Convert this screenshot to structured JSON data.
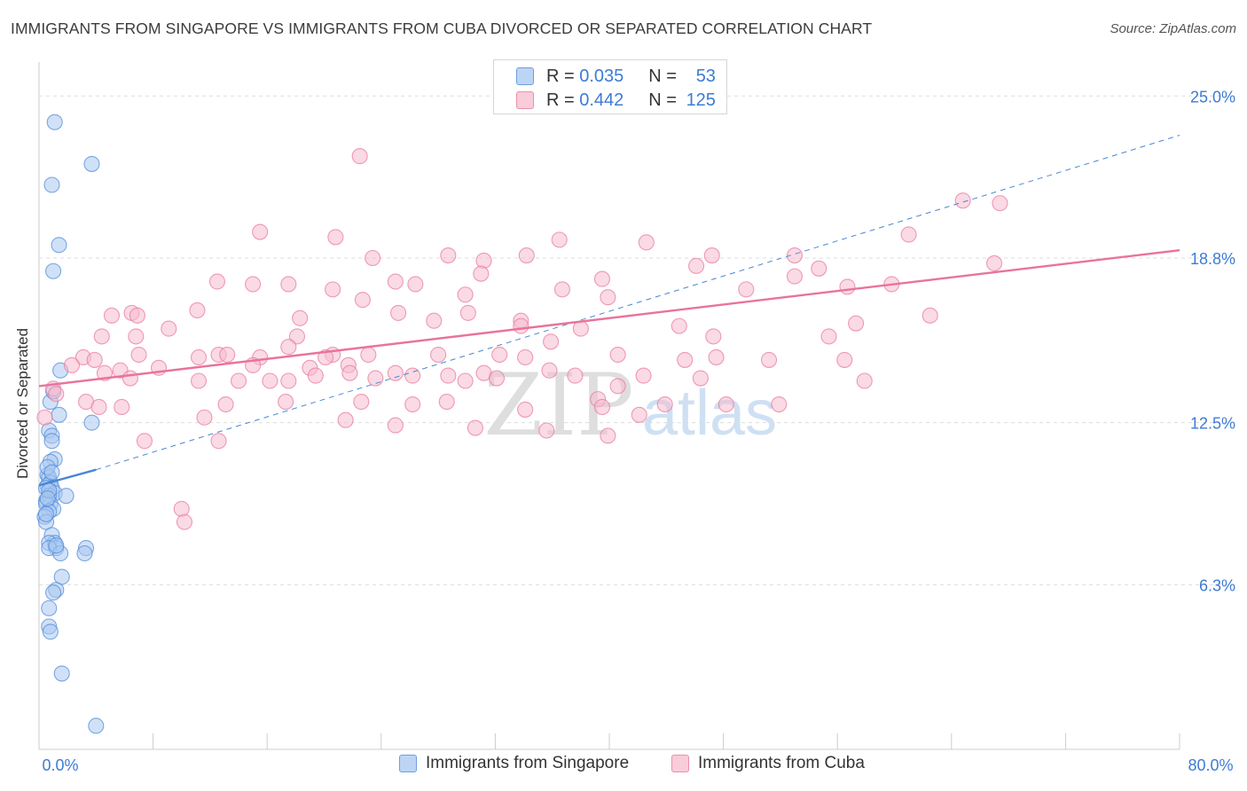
{
  "title": "IMMIGRANTS FROM SINGAPORE VS IMMIGRANTS FROM CUBA DIVORCED OR SEPARATED CORRELATION CHART",
  "source": "Source: ZipAtlas.com",
  "watermark": {
    "zip": "ZIP",
    "atlas": "atlas"
  },
  "legend_top": {
    "rows": [
      {
        "r_label": "R =",
        "r_value": "0.035",
        "n_label": "N =",
        "n_value": "53",
        "color": "#a9c8f0"
      },
      {
        "r_label": "R =",
        "r_value": "0.442",
        "n_label": "N =",
        "n_value": "125",
        "color": "#f6bccd"
      }
    ]
  },
  "legend_bottom": {
    "items": [
      {
        "label": "Immigrants from Singapore",
        "color": "#a9c8f0"
      },
      {
        "label": "Immigrants from Cuba",
        "color": "#f6bccd"
      }
    ]
  },
  "chart_data": {
    "type": "scatter",
    "title": "IMMIGRANTS FROM SINGAPORE VS IMMIGRANTS FROM CUBA DIVORCED OR SEPARATED CORRELATION CHART",
    "xlabel": "",
    "ylabel": "Divorced or Separated",
    "xlim": [
      0,
      80
    ],
    "ylim": [
      0,
      26.3
    ],
    "x_tick_labels": [
      "0.0%",
      "80.0%"
    ],
    "y_ticks": [
      6.3,
      12.5,
      18.8,
      25.0
    ],
    "y_tick_labels": [
      "6.3%",
      "12.5%",
      "18.8%",
      "25.0%"
    ],
    "grid": true,
    "series": [
      {
        "name": "Immigrants from Singapore",
        "color": "#4a86d8",
        "fill": "#a9c8f0",
        "points": [
          [
            1.1,
            24.0
          ],
          [
            3.7,
            22.4
          ],
          [
            0.9,
            21.6
          ],
          [
            1.4,
            19.3
          ],
          [
            1.0,
            18.3
          ],
          [
            1.5,
            14.5
          ],
          [
            0.8,
            13.3
          ],
          [
            1.0,
            13.7
          ],
          [
            1.4,
            12.8
          ],
          [
            3.7,
            12.5
          ],
          [
            0.7,
            12.2
          ],
          [
            0.9,
            12.0
          ],
          [
            0.9,
            11.8
          ],
          [
            1.1,
            11.1
          ],
          [
            0.8,
            11.0
          ],
          [
            0.6,
            10.5
          ],
          [
            0.7,
            10.4
          ],
          [
            0.8,
            10.2
          ],
          [
            0.6,
            10.1
          ],
          [
            0.9,
            10.0
          ],
          [
            0.5,
            10.0
          ],
          [
            1.1,
            9.8
          ],
          [
            0.7,
            9.7
          ],
          [
            0.5,
            9.5
          ],
          [
            1.9,
            9.7
          ],
          [
            0.8,
            9.4
          ],
          [
            0.5,
            9.4
          ],
          [
            1.0,
            9.2
          ],
          [
            0.7,
            9.1
          ],
          [
            0.4,
            8.9
          ],
          [
            0.5,
            8.7
          ],
          [
            0.9,
            8.2
          ],
          [
            1.1,
            7.9
          ],
          [
            0.7,
            7.9
          ],
          [
            1.2,
            7.7
          ],
          [
            0.7,
            7.7
          ],
          [
            3.3,
            7.7
          ],
          [
            3.2,
            7.5
          ],
          [
            1.5,
            7.5
          ],
          [
            1.6,
            6.6
          ],
          [
            1.2,
            6.1
          ],
          [
            1.0,
            6.0
          ],
          [
            0.7,
            5.4
          ],
          [
            0.7,
            4.7
          ],
          [
            0.8,
            4.5
          ],
          [
            1.6,
            2.9
          ],
          [
            4.0,
            0.9
          ],
          [
            0.6,
            10.8
          ],
          [
            0.7,
            9.9
          ],
          [
            0.5,
            9.0
          ],
          [
            1.2,
            7.8
          ],
          [
            0.9,
            10.6
          ],
          [
            0.6,
            9.6
          ]
        ]
      },
      {
        "name": "Immigrants from Cuba",
        "color": "#e9739a",
        "fill": "#f6bccd",
        "points": [
          [
            22.5,
            22.7
          ],
          [
            64.8,
            21.0
          ],
          [
            67.4,
            20.9
          ],
          [
            15.5,
            19.8
          ],
          [
            20.8,
            19.6
          ],
          [
            36.5,
            19.5
          ],
          [
            42.6,
            19.4
          ],
          [
            61.0,
            19.7
          ],
          [
            23.4,
            18.8
          ],
          [
            28.7,
            18.9
          ],
          [
            34.2,
            18.9
          ],
          [
            47.2,
            18.9
          ],
          [
            53.0,
            18.9
          ],
          [
            31.2,
            18.7
          ],
          [
            67.0,
            18.6
          ],
          [
            46.1,
            18.5
          ],
          [
            54.7,
            18.4
          ],
          [
            31.0,
            18.2
          ],
          [
            53.0,
            18.1
          ],
          [
            39.5,
            18.0
          ],
          [
            25.0,
            17.9
          ],
          [
            12.5,
            17.9
          ],
          [
            15.0,
            17.8
          ],
          [
            17.5,
            17.8
          ],
          [
            20.6,
            17.6
          ],
          [
            26.4,
            17.8
          ],
          [
            36.7,
            17.6
          ],
          [
            29.9,
            17.4
          ],
          [
            59.8,
            17.8
          ],
          [
            56.7,
            17.7
          ],
          [
            49.6,
            17.6
          ],
          [
            39.9,
            17.3
          ],
          [
            22.7,
            17.2
          ],
          [
            11.1,
            16.8
          ],
          [
            6.5,
            16.7
          ],
          [
            25.2,
            16.7
          ],
          [
            6.9,
            16.6
          ],
          [
            5.1,
            16.6
          ],
          [
            30.1,
            16.7
          ],
          [
            18.3,
            16.5
          ],
          [
            27.7,
            16.4
          ],
          [
            33.8,
            16.4
          ],
          [
            62.5,
            16.6
          ],
          [
            9.1,
            16.1
          ],
          [
            33.8,
            16.2
          ],
          [
            38.0,
            16.1
          ],
          [
            44.9,
            16.2
          ],
          [
            57.3,
            16.3
          ],
          [
            55.4,
            15.8
          ],
          [
            4.4,
            15.8
          ],
          [
            6.8,
            15.8
          ],
          [
            18.1,
            15.8
          ],
          [
            47.3,
            15.8
          ],
          [
            35.9,
            15.6
          ],
          [
            17.5,
            15.4
          ],
          [
            7.0,
            15.1
          ],
          [
            12.6,
            15.1
          ],
          [
            13.2,
            15.1
          ],
          [
            20.6,
            15.1
          ],
          [
            28.0,
            15.1
          ],
          [
            11.2,
            15.0
          ],
          [
            15.5,
            15.0
          ],
          [
            20.1,
            15.0
          ],
          [
            23.1,
            15.1
          ],
          [
            32.3,
            15.1
          ],
          [
            34.1,
            15.0
          ],
          [
            45.3,
            14.9
          ],
          [
            47.5,
            15.0
          ],
          [
            40.6,
            15.1
          ],
          [
            51.2,
            14.9
          ],
          [
            56.5,
            14.9
          ],
          [
            3.1,
            15.0
          ],
          [
            3.9,
            14.9
          ],
          [
            2.3,
            14.7
          ],
          [
            4.6,
            14.4
          ],
          [
            5.7,
            14.5
          ],
          [
            8.4,
            14.6
          ],
          [
            15.0,
            14.7
          ],
          [
            19.0,
            14.6
          ],
          [
            21.7,
            14.7
          ],
          [
            21.8,
            14.4
          ],
          [
            25.0,
            14.4
          ],
          [
            26.2,
            14.3
          ],
          [
            31.2,
            14.4
          ],
          [
            37.6,
            14.3
          ],
          [
            29.9,
            14.1
          ],
          [
            35.8,
            14.5
          ],
          [
            42.4,
            14.3
          ],
          [
            46.4,
            14.2
          ],
          [
            57.9,
            14.1
          ],
          [
            6.4,
            14.2
          ],
          [
            11.2,
            14.1
          ],
          [
            14.0,
            14.1
          ],
          [
            16.2,
            14.1
          ],
          [
            17.5,
            14.1
          ],
          [
            19.4,
            14.3
          ],
          [
            23.6,
            14.2
          ],
          [
            28.7,
            14.3
          ],
          [
            32.1,
            14.2
          ],
          [
            40.6,
            13.9
          ],
          [
            1.0,
            13.8
          ],
          [
            1.2,
            13.6
          ],
          [
            3.3,
            13.3
          ],
          [
            4.2,
            13.1
          ],
          [
            5.8,
            13.1
          ],
          [
            13.1,
            13.2
          ],
          [
            17.3,
            13.3
          ],
          [
            22.6,
            13.3
          ],
          [
            26.2,
            13.2
          ],
          [
            28.6,
            13.3
          ],
          [
            34.1,
            13.0
          ],
          [
            39.2,
            13.4
          ],
          [
            39.5,
            13.1
          ],
          [
            42.1,
            12.8
          ],
          [
            43.9,
            13.2
          ],
          [
            48.2,
            13.2
          ],
          [
            51.9,
            13.2
          ],
          [
            0.4,
            12.7
          ],
          [
            11.6,
            12.7
          ],
          [
            21.5,
            12.6
          ],
          [
            25.0,
            12.4
          ],
          [
            30.6,
            12.3
          ],
          [
            35.6,
            12.2
          ],
          [
            39.9,
            12.0
          ],
          [
            7.4,
            11.8
          ],
          [
            12.6,
            11.8
          ],
          [
            10.0,
            9.2
          ],
          [
            10.2,
            8.7
          ]
        ]
      }
    ],
    "trend_lines": [
      {
        "series": "Immigrants from Singapore",
        "style": "solid",
        "x": [
          0,
          4.0
        ],
        "y": [
          10.1,
          10.7
        ]
      },
      {
        "series": "Immigrants from Singapore",
        "style": "dashed",
        "x": [
          4.0,
          80
        ],
        "y": [
          10.7,
          23.5
        ]
      },
      {
        "series": "Immigrants from Cuba",
        "style": "solid",
        "x": [
          0,
          80
        ],
        "y": [
          13.9,
          19.1
        ]
      }
    ]
  }
}
